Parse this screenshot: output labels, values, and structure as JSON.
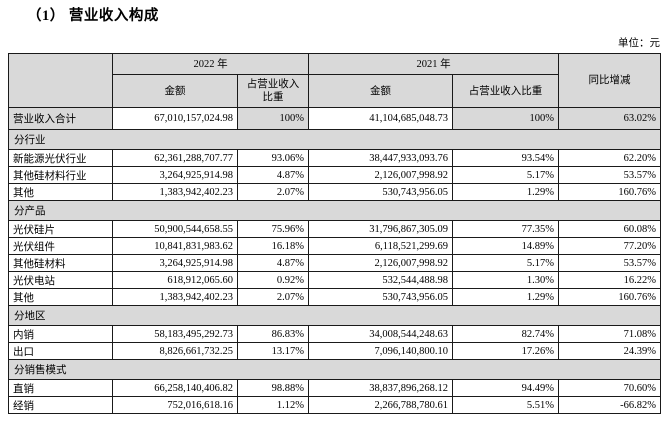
{
  "title": "（1） 营业收入构成",
  "unit_label": "单位：元",
  "table": {
    "header": {
      "year_2022": "2022 年",
      "year_2021": "2021 年",
      "amount_2022": "金额",
      "ratio_2022": "占营业收入比重",
      "amount_2021": "金额",
      "ratio_2021": "占营业收入比重",
      "yoy": "同比增减"
    },
    "total_row": {
      "label": "营业收入合计",
      "a2022": "67,010,157,024.98",
      "r2022": "100%",
      "a2021": "41,104,685,048.73",
      "r2021": "100%",
      "yoy": "63.02%"
    },
    "sections": [
      {
        "label": "分行业",
        "rows": [
          {
            "label": "新能源光伏行业",
            "a2022": "62,361,288,707.77",
            "r2022": "93.06%",
            "a2021": "38,447,933,093.76",
            "r2021": "93.54%",
            "yoy": "62.20%"
          },
          {
            "label": "其他硅材料行业",
            "a2022": "3,264,925,914.98",
            "r2022": "4.87%",
            "a2021": "2,126,007,998.92",
            "r2021": "5.17%",
            "yoy": "53.57%"
          },
          {
            "label": "其他",
            "a2022": "1,383,942,402.23",
            "r2022": "2.07%",
            "a2021": "530,743,956.05",
            "r2021": "1.29%",
            "yoy": "160.76%"
          }
        ]
      },
      {
        "label": "分产品",
        "rows": [
          {
            "label": "光伏硅片",
            "a2022": "50,900,544,658.55",
            "r2022": "75.96%",
            "a2021": "31,796,867,305.09",
            "r2021": "77.35%",
            "yoy": "60.08%"
          },
          {
            "label": "光伏组件",
            "a2022": "10,841,831,983.62",
            "r2022": "16.18%",
            "a2021": "6,118,521,299.69",
            "r2021": "14.89%",
            "yoy": "77.20%"
          },
          {
            "label": "其他硅材料",
            "a2022": "3,264,925,914.98",
            "r2022": "4.87%",
            "a2021": "2,126,007,998.92",
            "r2021": "5.17%",
            "yoy": "53.57%"
          },
          {
            "label": "光伏电站",
            "a2022": "618,912,065.60",
            "r2022": "0.92%",
            "a2021": "532,544,488.98",
            "r2021": "1.30%",
            "yoy": "16.22%"
          },
          {
            "label": "其他",
            "a2022": "1,383,942,402.23",
            "r2022": "2.07%",
            "a2021": "530,743,956.05",
            "r2021": "1.29%",
            "yoy": "160.76%"
          }
        ]
      },
      {
        "label": "分地区",
        "rows": [
          {
            "label": "内销",
            "a2022": "58,183,495,292.73",
            "r2022": "86.83%",
            "a2021": "34,008,544,248.63",
            "r2021": "82.74%",
            "yoy": "71.08%"
          },
          {
            "label": "出口",
            "a2022": "8,826,661,732.25",
            "r2022": "13.17%",
            "a2021": "7,096,140,800.10",
            "r2021": "17.26%",
            "yoy": "24.39%"
          }
        ]
      },
      {
        "label": "分销售模式",
        "rows": [
          {
            "label": "直销",
            "a2022": "66,258,140,406.82",
            "r2022": "98.88%",
            "a2021": "38,837,896,268.12",
            "r2021": "94.49%",
            "yoy": "70.60%"
          },
          {
            "label": "经销",
            "a2022": "752,016,618.16",
            "r2022": "1.12%",
            "a2021": "2,266,788,780.61",
            "r2021": "5.51%",
            "yoy": "-66.82%"
          }
        ]
      }
    ]
  }
}
